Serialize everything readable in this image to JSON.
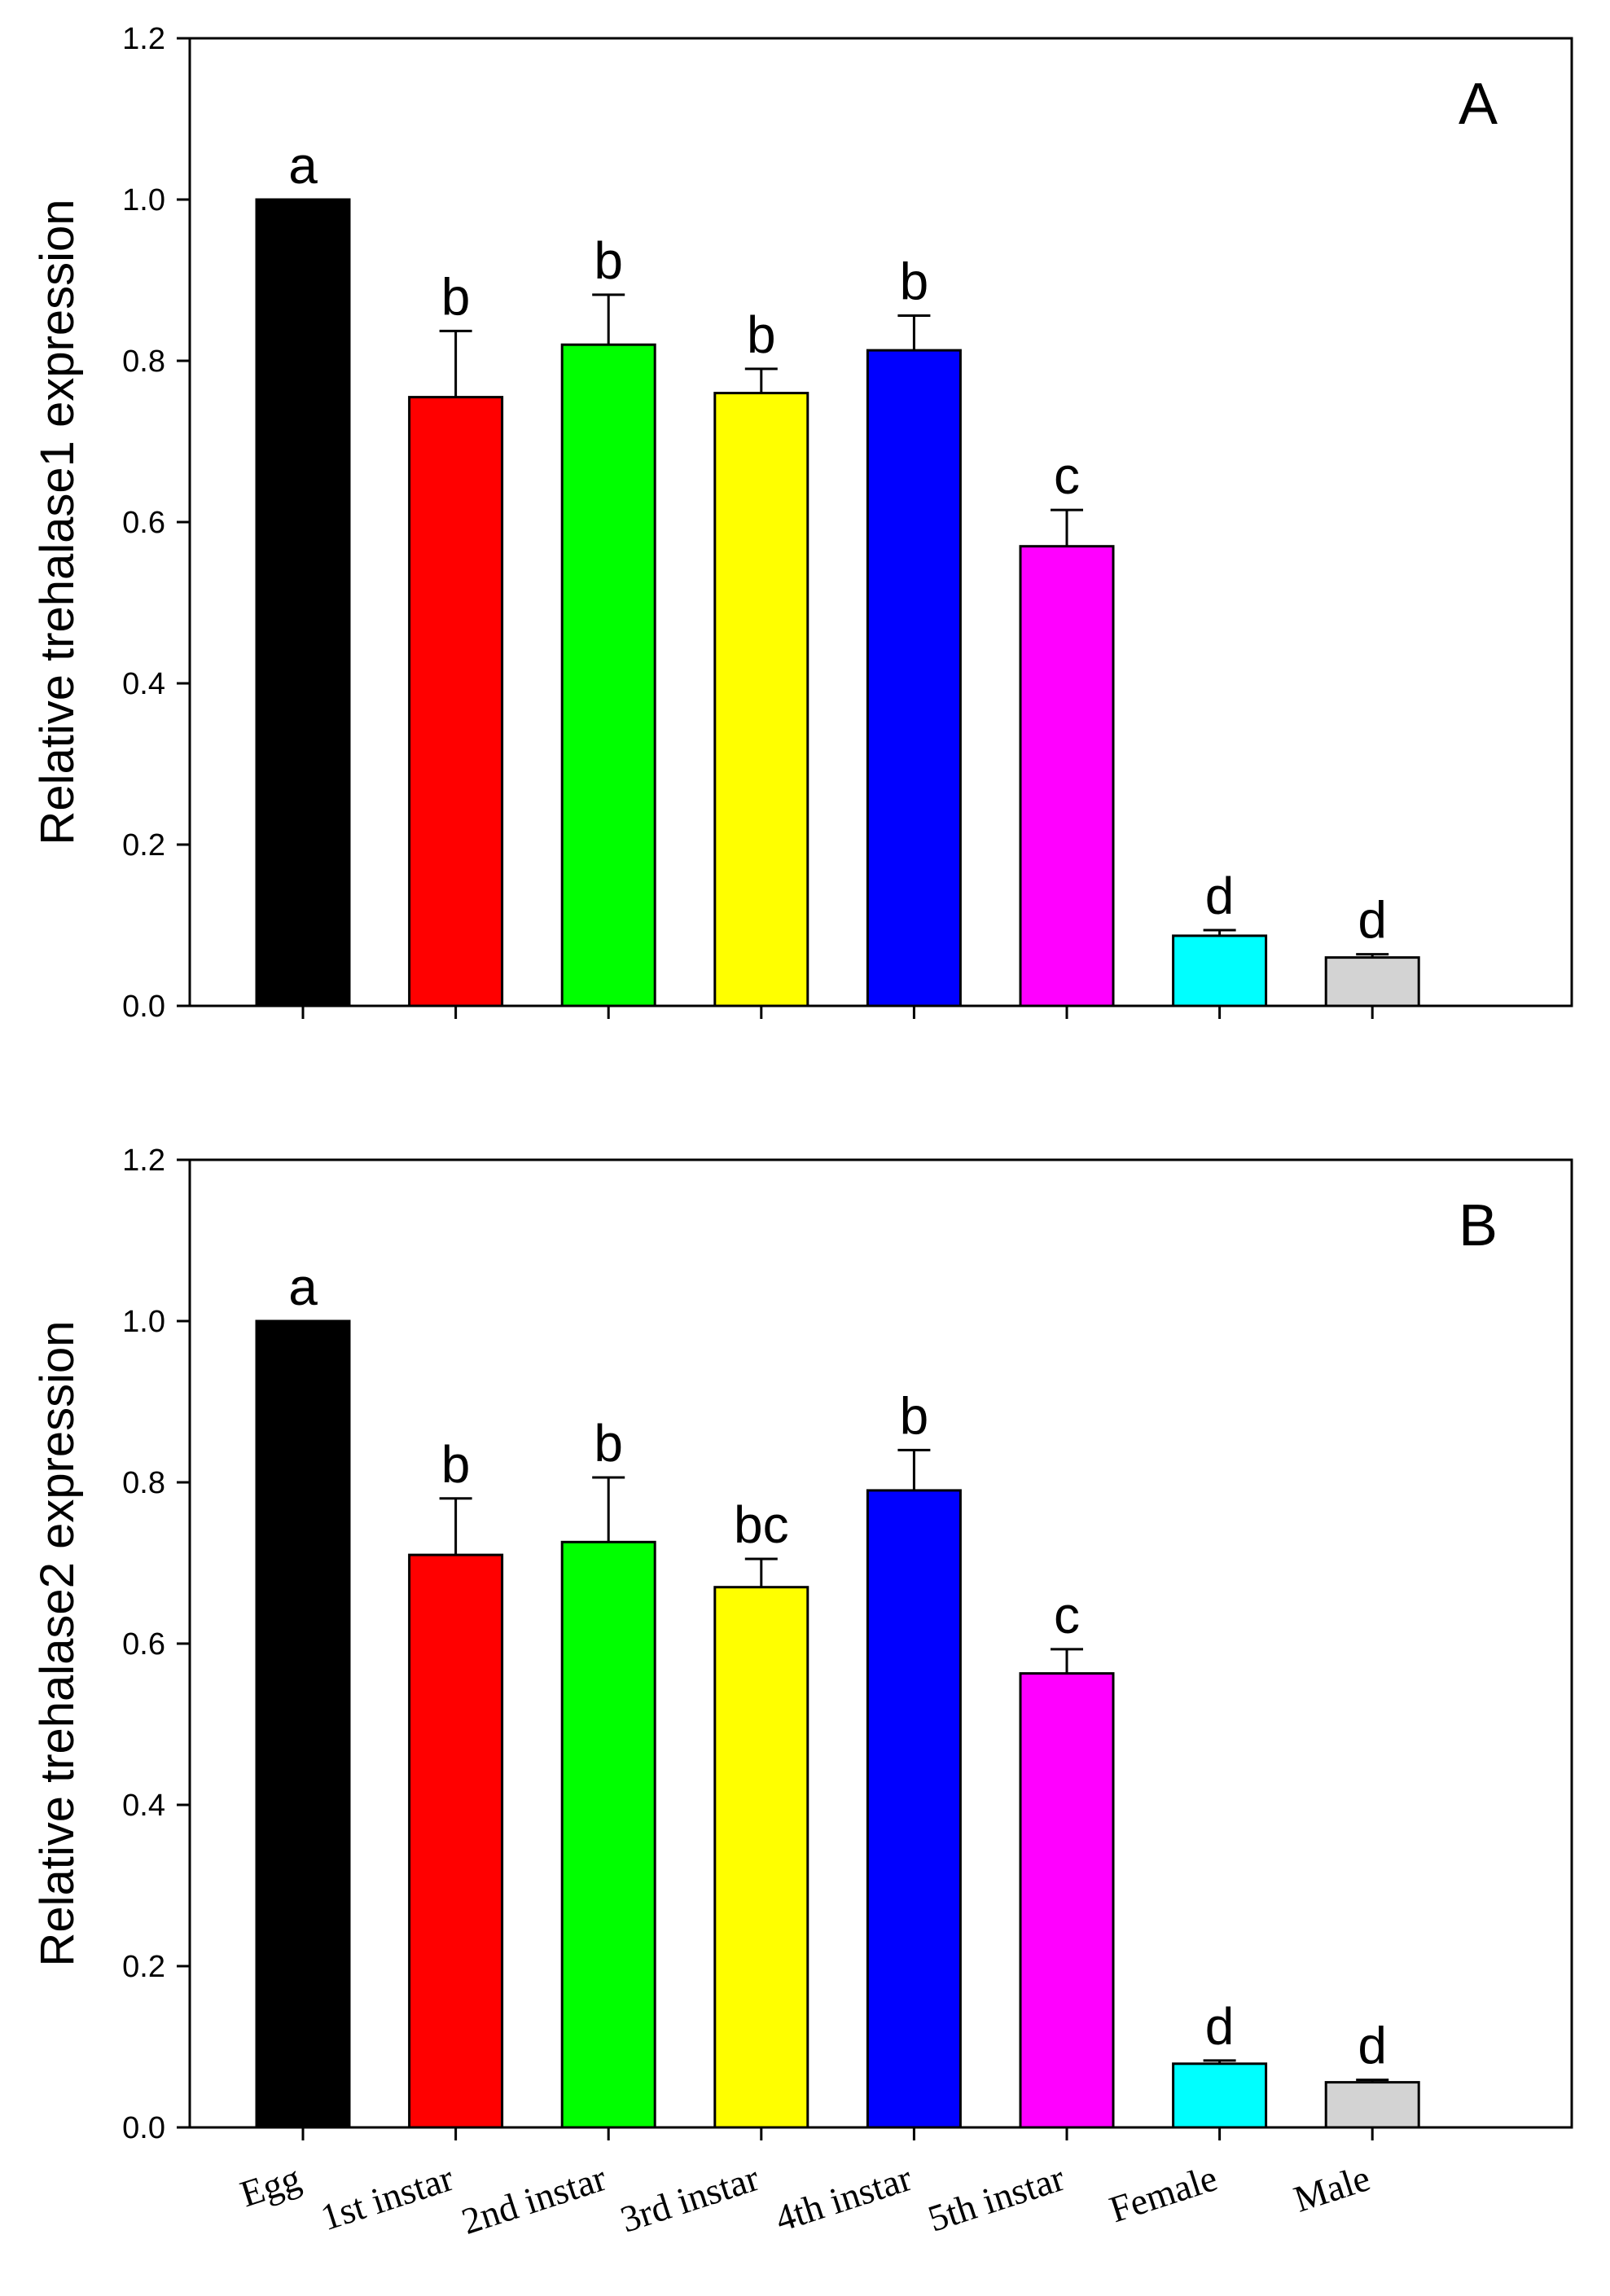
{
  "colors": {
    "axis": "#000000",
    "background": "#ffffff",
    "bars": [
      "#000000",
      "#ff0000",
      "#00ff00",
      "#ffff00",
      "#0000ff",
      "#ff00ff",
      "#00ffff",
      "#d3d3d3"
    ]
  },
  "chart_data": [
    {
      "type": "bar",
      "panel_label": "A",
      "ylabel": "Relative trehalase1 expression",
      "xlabel": "",
      "ylim": [
        0,
        1.2
      ],
      "yticks": [
        "0.0",
        "0.2",
        "0.4",
        "0.6",
        "0.8",
        "1.0",
        "1.2"
      ],
      "categories": [
        "Egg",
        "1st instar",
        "2nd instar",
        "3rd instar",
        "4th instar",
        "5th instar",
        "Female",
        "Male"
      ],
      "show_category_labels": false,
      "values": [
        1.0,
        0.755,
        0.82,
        0.76,
        0.813,
        0.57,
        0.087,
        0.06
      ],
      "errors": [
        0.0,
        0.082,
        0.062,
        0.03,
        0.043,
        0.045,
        0.007,
        0.004
      ],
      "significance": [
        "a",
        "b",
        "b",
        "b",
        "b",
        "c",
        "d",
        "d"
      ]
    },
    {
      "type": "bar",
      "panel_label": "B",
      "ylabel": "Relative trehalase2 expression",
      "xlabel": "",
      "ylim": [
        0,
        1.2
      ],
      "yticks": [
        "0.0",
        "0.2",
        "0.4",
        "0.6",
        "0.8",
        "1.0",
        "1.2"
      ],
      "categories": [
        "Egg",
        "1st instar",
        "2nd instar",
        "3rd instar",
        "4th instar",
        "5th instar",
        "Female",
        "Male"
      ],
      "show_category_labels": true,
      "values": [
        1.0,
        0.71,
        0.726,
        0.67,
        0.79,
        0.563,
        0.079,
        0.056
      ],
      "errors": [
        0.0,
        0.07,
        0.08,
        0.035,
        0.05,
        0.03,
        0.004,
        0.003
      ],
      "significance": [
        "a",
        "b",
        "b",
        "bc",
        "b",
        "c",
        "d",
        "d"
      ]
    }
  ]
}
